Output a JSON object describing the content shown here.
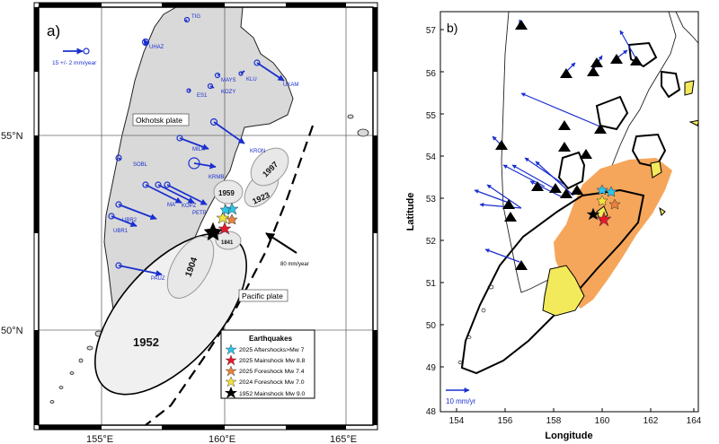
{
  "panel_a": {
    "label": "a)",
    "lat_labels": [
      "55°N",
      "50°N"
    ],
    "lon_labels": [
      "155°E",
      "160°E",
      "165°E"
    ],
    "okhotsk_label": "Okhotsk plate",
    "pacific_label": "Pacific plate",
    "velocity_scale": "15 +/- 2 mm/year",
    "plate_rate": "80 mm/year",
    "rupture_years": [
      "1952",
      "1904",
      "1841",
      "1959",
      "1923",
      "1997"
    ],
    "stations": [
      {
        "code": "TIG"
      },
      {
        "code": "UHAZ"
      },
      {
        "code": "MAYS"
      },
      {
        "code": "KLU"
      },
      {
        "code": "UKAM"
      },
      {
        "code": "ES1"
      },
      {
        "code": "KOZY"
      },
      {
        "code": "MILK"
      },
      {
        "code": "KRON"
      },
      {
        "code": "SOBL"
      },
      {
        "code": "KRMB"
      },
      {
        "code": "MA"
      },
      {
        "code": "KOPZ"
      },
      {
        "code": "PETP"
      },
      {
        "code": "UBR2"
      },
      {
        "code": "UBR1"
      },
      {
        "code": "PAUZ"
      }
    ],
    "legend": {
      "title": "Earthquakes",
      "items": [
        {
          "label": "2025 Aftershocks>Mw 7",
          "color": "#2ec4e8"
        },
        {
          "label": "2025 Mainshock Mw 8.8",
          "color": "#e8192c"
        },
        {
          "label": "2025 Foreshock Mw 7.4",
          "color": "#e8823a"
        },
        {
          "label": "2024 Foreshock Mw 7.0",
          "color": "#f2e23a"
        },
        {
          "label": "1952 Mainshock Mw 9.0",
          "color": "#000000"
        }
      ]
    }
  },
  "panel_b": {
    "label": "b)",
    "xlabel": "Longitude",
    "ylabel": "Latitude",
    "x_ticks": [
      "154",
      "156",
      "158",
      "160",
      "162",
      "164"
    ],
    "y_ticks": [
      "57",
      "56",
      "55",
      "54",
      "53",
      "52",
      "51",
      "50",
      "49",
      "48"
    ],
    "scale_label": "10 mm/yr"
  },
  "colors": {
    "land": "#d9d9d9",
    "vector": "#1a2fcf",
    "slip": "#f5a65b",
    "contour_fill": "#f2ea5a"
  }
}
